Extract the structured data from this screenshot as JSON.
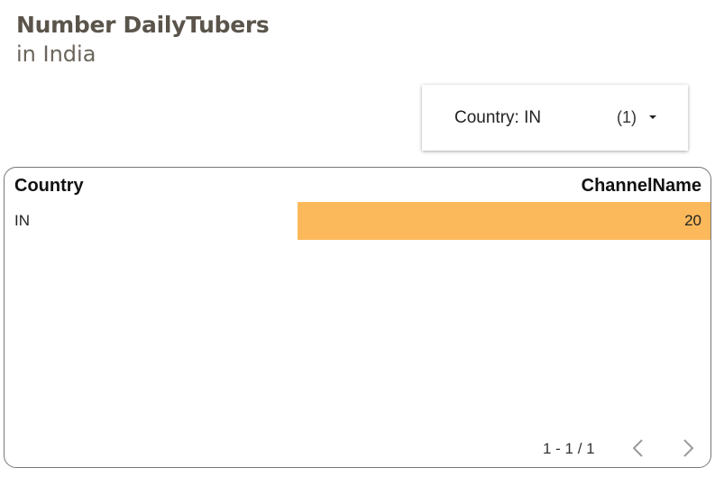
{
  "header": {
    "title": "Number DailyTubers",
    "subtitle": "in India"
  },
  "filter": {
    "label": "Country: IN",
    "count": "(1)"
  },
  "table": {
    "columns": [
      "Country",
      "ChannelName"
    ],
    "rows": [
      {
        "country": "IN",
        "channel_count": "20",
        "bar_fraction": 1.0
      }
    ],
    "bar_color": "#fcb95b"
  },
  "pagination": {
    "text": "1 - 1 / 1"
  }
}
